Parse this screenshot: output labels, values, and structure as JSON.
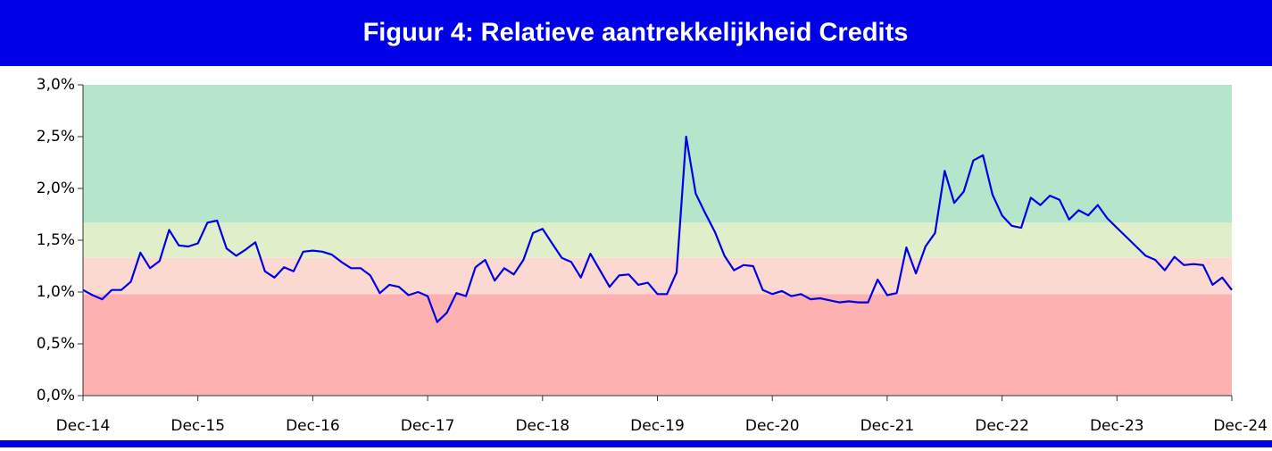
{
  "chart_data": {
    "type": "line",
    "title": "Figuur 4: Relatieve aantrekkelijkheid Credits",
    "categories": [
      "Dec-14",
      null,
      null,
      null,
      null,
      null,
      null,
      null,
      null,
      null,
      null,
      null,
      "Dec-15",
      null,
      null,
      null,
      null,
      null,
      null,
      null,
      null,
      null,
      null,
      null,
      "Dec-16",
      null,
      null,
      null,
      null,
      null,
      null,
      null,
      null,
      null,
      null,
      null,
      "Dec-17",
      null,
      null,
      null,
      null,
      null,
      null,
      null,
      null,
      null,
      null,
      null,
      "Dec-18",
      null,
      null,
      null,
      null,
      null,
      null,
      null,
      null,
      null,
      null,
      null,
      "Dec-19",
      null,
      null,
      null,
      null,
      null,
      null,
      null,
      null,
      null,
      null,
      null,
      "Dec-20",
      null,
      null,
      null,
      null,
      null,
      null,
      null,
      null,
      null,
      null,
      null,
      "Dec-21",
      null,
      null,
      null,
      null,
      null,
      null,
      null,
      null,
      null,
      null,
      null,
      "Dec-22",
      null,
      null,
      null,
      null,
      null,
      null,
      null,
      null,
      null,
      null,
      null,
      "Dec-23",
      null,
      null,
      null,
      null,
      null,
      null,
      null,
      null,
      null,
      null,
      null,
      "Dec-24"
    ],
    "series": [
      {
        "color": "#0000e6",
        "values": [
          1.02,
          0.97,
          0.93,
          1.02,
          1.02,
          1.1,
          1.38,
          1.23,
          1.3,
          1.6,
          1.45,
          1.44,
          1.47,
          1.67,
          1.69,
          1.42,
          1.35,
          1.41,
          1.48,
          1.2,
          1.14,
          1.24,
          1.2,
          1.39,
          1.4,
          1.39,
          1.36,
          1.29,
          1.23,
          1.23,
          1.16,
          0.99,
          1.07,
          1.05,
          0.97,
          1.0,
          0.96,
          0.71,
          0.8,
          0.99,
          0.96,
          1.24,
          1.31,
          1.11,
          1.23,
          1.17,
          1.31,
          1.57,
          1.61,
          1.47,
          1.33,
          1.29,
          1.14,
          1.37,
          1.21,
          1.05,
          1.16,
          1.17,
          1.07,
          1.09,
          0.98,
          0.98,
          1.19,
          2.5,
          1.95,
          1.76,
          1.58,
          1.35,
          1.21,
          1.26,
          1.25,
          1.02,
          0.98,
          1.01,
          0.96,
          0.98,
          0.93,
          0.94,
          0.92,
          0.9,
          0.91,
          0.9,
          0.9,
          1.12,
          0.97,
          0.99,
          1.43,
          1.18,
          1.44,
          1.57,
          2.17,
          1.86,
          1.97,
          2.27,
          2.32,
          1.94,
          1.74,
          1.64,
          1.62,
          1.91,
          1.84,
          1.93,
          1.89,
          1.7,
          1.79,
          1.74,
          1.84,
          1.71,
          1.62,
          1.53,
          1.44,
          1.35,
          1.31,
          1.21,
          1.34,
          1.26,
          1.27,
          1.26,
          1.07,
          1.14,
          1.02
        ]
      }
    ],
    "bands": [
      {
        "from": 0,
        "to": 0.98,
        "color": "#feb1b1"
      },
      {
        "from": 0.98,
        "to": 1.33,
        "color": "#fcd9d0"
      },
      {
        "from": 1.33,
        "to": 1.67,
        "color": "#e0efca"
      },
      {
        "from": 1.67,
        "to": 3.0,
        "color": "#b3e6cb"
      }
    ],
    "ylim": [
      0,
      3.0
    ],
    "yticks": [
      {
        "value": 0,
        "label": "0,0%"
      },
      {
        "value": 0.5,
        "label": "0,5%"
      },
      {
        "value": 1.0,
        "label": "1,0%"
      },
      {
        "value": 1.5,
        "label": "1,5%"
      },
      {
        "value": 2.0,
        "label": "2,0%"
      },
      {
        "value": 2.5,
        "label": "2,5%"
      },
      {
        "value": 3.0,
        "label": "3,0%"
      }
    ]
  }
}
